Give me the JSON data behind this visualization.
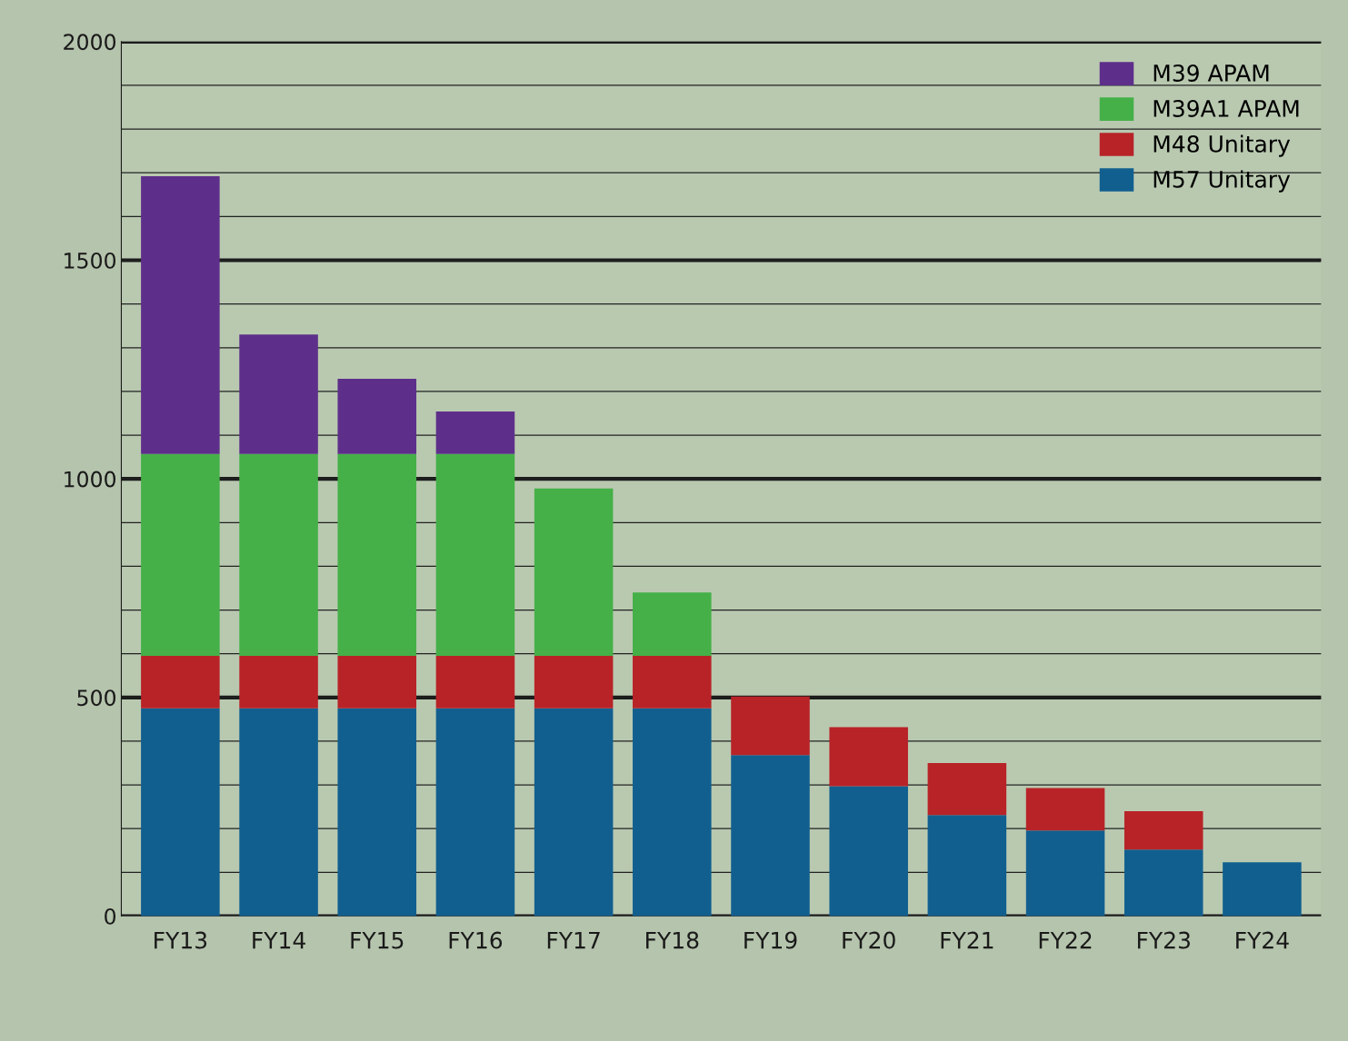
{
  "chart_data": {
    "type": "bar",
    "stacked": true,
    "categories": [
      "FY13",
      "FY14",
      "FY15",
      "FY16",
      "FY17",
      "FY18",
      "FY19",
      "FY20",
      "FY21",
      "FY22",
      "FY23",
      "FY24"
    ],
    "series": [
      {
        "name": "M57 Unitary",
        "color": "#115f8f",
        "values": [
          475,
          475,
          475,
          475,
          475,
          475,
          368,
          297,
          231,
          196,
          152,
          123
        ]
      },
      {
        "name": "M48 Unitary",
        "color": "#b82328",
        "values": [
          120,
          120,
          120,
          120,
          120,
          120,
          134,
          135,
          119,
          97,
          88,
          null
        ]
      },
      {
        "name": "M39A1 APAM",
        "color": "#45b048",
        "values": [
          462,
          462,
          462,
          462,
          383,
          145,
          null,
          null,
          null,
          null,
          null,
          null
        ]
      },
      {
        "name": "M39 APAM",
        "color": "#5e2f8a",
        "values": [
          635,
          273,
          172,
          97,
          null,
          null,
          null,
          null,
          null,
          null,
          null,
          null
        ]
      }
    ],
    "ylim": [
      0,
      2000
    ],
    "yticks": [
      0,
      {
        "value": 100,
        "label": null
      },
      {
        "value": 200,
        "label": null
      },
      {
        "value": 300,
        "label": null
      },
      {
        "value": 400,
        "label": null
      },
      500,
      {
        "value": 600,
        "label": null
      },
      {
        "value": 700,
        "label": null
      },
      {
        "value": 800,
        "label": null
      },
      {
        "value": 900,
        "label": null
      },
      1000,
      {
        "value": 1100,
        "label": null
      },
      {
        "value": 1200,
        "label": null
      },
      {
        "value": 1300,
        "label": null
      },
      {
        "value": 1400,
        "label": null
      },
      1500,
      {
        "value": 1600,
        "label": null
      },
      {
        "value": 1700,
        "label": null
      },
      {
        "value": 1800,
        "label": null
      },
      {
        "value": 1900,
        "label": null
      },
      2000
    ],
    "grid": "y",
    "legend": "top right"
  }
}
